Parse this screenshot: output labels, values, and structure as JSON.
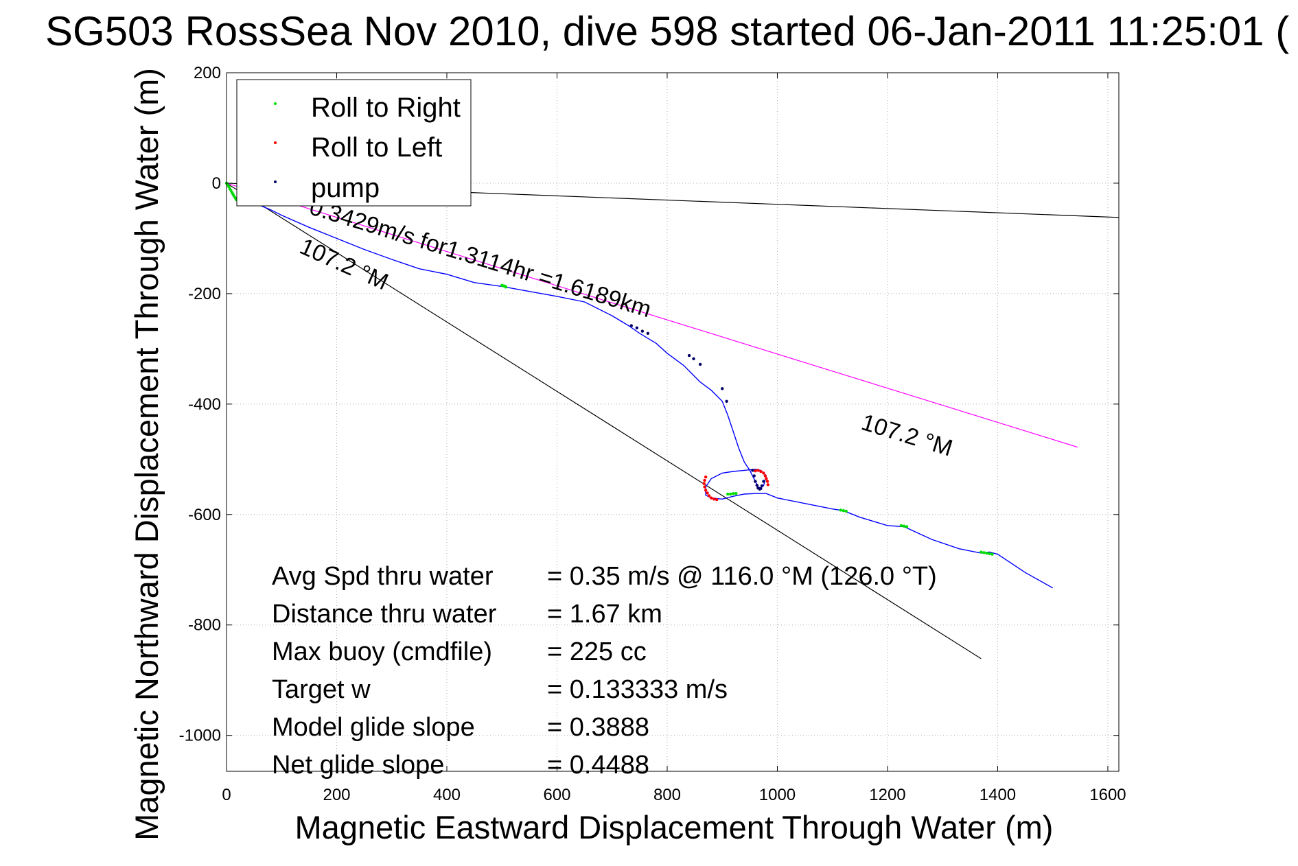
{
  "chart_data": {
    "type": "line",
    "title": "SG503 RossSea Nov 2010, dive 598 started 06-Jan-2011 11:25:01 (",
    "xlabel": "Magnetic Eastward Displacement Through Water (m)",
    "ylabel": "Magnetic Northward Displacement Through Water (m)",
    "xlim": [
      0,
      1620
    ],
    "ylim": [
      -1065,
      200
    ],
    "xticks": [
      0,
      200,
      400,
      600,
      800,
      1000,
      1200,
      1400,
      1600
    ],
    "yticks": [
      200,
      0,
      -200,
      -400,
      -600,
      -800,
      -1000
    ],
    "grid": true,
    "legend": {
      "position": "top-left",
      "entries": [
        {
          "label": "Roll to Right",
          "color": "#00dd00"
        },
        {
          "label": "Roll to Left",
          "color": "#ff0000"
        },
        {
          "label": "pump",
          "color": "#000066"
        }
      ]
    },
    "track": {
      "color": "#0000ff",
      "x": [
        0,
        3,
        6,
        10,
        15,
        20,
        25,
        40,
        60,
        80,
        100,
        150,
        200,
        250,
        300,
        350,
        400,
        450,
        500,
        550,
        600,
        650,
        700,
        730,
        750,
        780,
        800,
        830,
        860,
        880,
        900,
        910,
        920,
        930,
        940,
        950,
        960,
        965,
        970,
        975,
        980,
        970,
        960,
        940,
        920,
        900,
        880,
        870,
        870,
        880,
        900,
        920,
        940,
        960,
        980,
        1000,
        1050,
        1100,
        1120,
        1150,
        1200,
        1230,
        1280,
        1330,
        1370,
        1385,
        1400,
        1450,
        1500
      ],
      "y": [
        0,
        -6,
        -12,
        -20,
        -28,
        -33,
        -35,
        -36,
        -40,
        -48,
        -58,
        -80,
        -100,
        -120,
        -138,
        -155,
        -165,
        -180,
        -187,
        -196,
        -205,
        -215,
        -240,
        -258,
        -272,
        -290,
        -308,
        -330,
        -360,
        -375,
        -395,
        -420,
        -450,
        -480,
        -505,
        -520,
        -540,
        -550,
        -552,
        -548,
        -530,
        -520,
        -518,
        -520,
        -522,
        -525,
        -535,
        -550,
        -565,
        -570,
        -572,
        -567,
        -563,
        -562,
        -562,
        -570,
        -580,
        -590,
        -593,
        -605,
        -620,
        -622,
        -645,
        -662,
        -670,
        -668,
        -672,
        -705,
        -733
      ]
    },
    "roll_to_right_points": {
      "color": "#00dd00",
      "x": [
        0,
        2,
        4,
        6,
        8,
        10,
        12,
        14,
        16,
        18,
        500,
        503,
        506,
        507,
        910,
        915,
        920,
        925,
        1115,
        1120,
        1125,
        1225,
        1230,
        1235,
        1370,
        1375,
        1380,
        1385,
        1390
      ],
      "y": [
        0,
        -3,
        -6,
        -10,
        -13,
        -17,
        -20,
        -24,
        -27,
        -30,
        -185,
        -186,
        -187,
        -188,
        -563,
        -563,
        -562,
        -562,
        -592,
        -593,
        -594,
        -620,
        -621,
        -622,
        -668,
        -669,
        -670,
        -671,
        -672
      ]
    },
    "roll_to_left_points": {
      "color": "#ff0000",
      "x": [
        870,
        868,
        867,
        868,
        870,
        873,
        876,
        880,
        885,
        890,
        960,
        965,
        970,
        975,
        978,
        980,
        982,
        983
      ],
      "y": [
        -532,
        -538,
        -544,
        -550,
        -556,
        -561,
        -566,
        -570,
        -572,
        -573,
        -521,
        -520,
        -522,
        -525,
        -530,
        -535,
        -540,
        -546
      ]
    },
    "pump_points": {
      "color": "#000066",
      "x": [
        735,
        745,
        755,
        765,
        840,
        848,
        860,
        900,
        908,
        955,
        958,
        960,
        963,
        965,
        968,
        970,
        972,
        975
      ],
      "y": [
        -258,
        -262,
        -268,
        -272,
        -312,
        -318,
        -328,
        -372,
        -395,
        -520,
        -530,
        -540,
        -547,
        -552,
        -554,
        -553,
        -548,
        -540
      ]
    },
    "reference_lines": [
      {
        "name": "heading",
        "color": "#000000",
        "x": [
          0,
          1620
        ],
        "y": [
          0,
          -62
        ]
      },
      {
        "name": "heading-107.2",
        "color": "#000000",
        "x": [
          0,
          1370
        ],
        "y": [
          0,
          -861
        ]
      },
      {
        "name": "magenta",
        "color": "#ff00ff",
        "x": [
          0,
          1545
        ],
        "y": [
          0,
          -478
        ]
      }
    ],
    "annotations": [
      {
        "text": "107.2 °M",
        "x": 1150,
        "y": -445,
        "angle": 17
      },
      {
        "text": "107.2 °M",
        "x": 130,
        "y": -125,
        "angle": 24
      },
      {
        "text": "0.3429m/s for1.3114hr =1.6189km",
        "x": 148,
        "y": -55,
        "angle": 17
      }
    ],
    "stats": [
      {
        "label": "Avg Spd thru water",
        "value": "=  0.35 m/s @ 116.0 °M (126.0 °T)"
      },
      {
        "label": "Distance thru water",
        "value": "=  1.67 km"
      },
      {
        "label": "Max buoy (cmdfile)",
        "value": "= 225 cc"
      },
      {
        "label": "Target w",
        "value": "= 0.133333 m/s"
      },
      {
        "label": "Model glide slope",
        "value": "= 0.3888"
      },
      {
        "label": "Net glide slope",
        "value": "= 0.4488"
      }
    ]
  }
}
